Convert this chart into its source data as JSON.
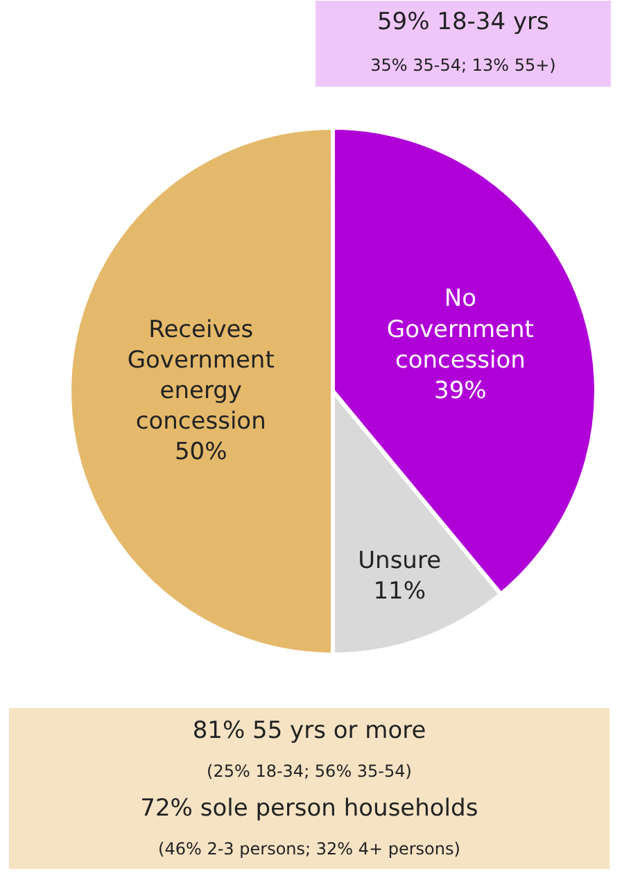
{
  "chart_data": {
    "type": "pie",
    "categories": [
      "No\nGovernment\nconcession",
      "Unsure",
      "Receives\nGovernment\nenergy\nconcession"
    ],
    "values": [
      39,
      11,
      50
    ],
    "colors": [
      "#b000d8",
      "#d9d9d9",
      "#e5b96b"
    ],
    "value_labels": [
      "39%",
      "11%",
      "50%"
    ],
    "legend": false,
    "annotations": [
      "59% 18-34 yrs",
      "35% 35-54; 13% 55+)",
      "81% 55 yrs or more",
      "(25% 18-34; 56% 35-54)",
      "72% sole person households",
      "(46% 2-3 persons; 32% 4+ persons)"
    ]
  }
}
